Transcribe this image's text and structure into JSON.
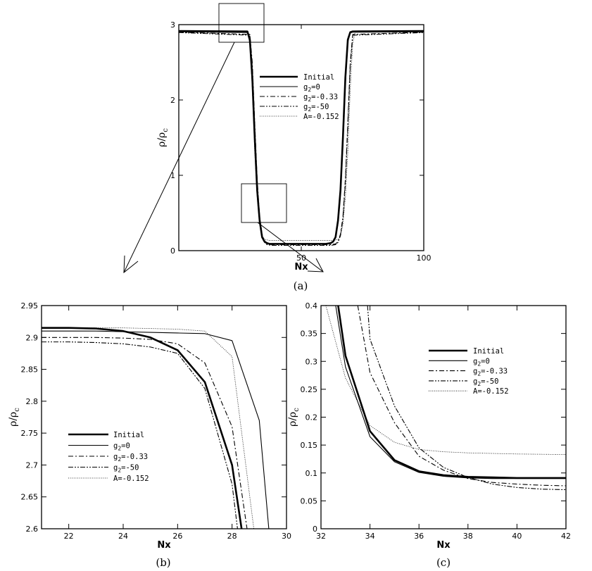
{
  "styles": {
    "Initial": {
      "width": 2.6,
      "dash": ""
    },
    "g2=0": {
      "width": 1.1,
      "dash": ""
    },
    "g2=-0.33": {
      "width": 1.1,
      "dash": "7,3,2,3"
    },
    "g2=-50": {
      "width": 1.1,
      "dash": "7,2,2,2,2,2"
    },
    "A=-0.152": {
      "width": 0.8,
      "dash": "1,1.6"
    }
  },
  "chart_data": [
    {
      "id": "a",
      "type": "line",
      "caption": "(a)",
      "xlabel": "Nx",
      "ylabel": "ρ/ρc",
      "ylabel_main": "ρ/ρ",
      "ylabel_sub": "c",
      "xlim": [
        0,
        100
      ],
      "ylim": [
        0,
        3
      ],
      "xticks": [
        {
          "v": 50,
          "label": "50"
        },
        {
          "v": 100,
          "label": "100"
        }
      ],
      "yticks": [
        {
          "v": 0,
          "label": "0"
        },
        {
          "v": 1,
          "label": "1"
        },
        {
          "v": 2,
          "label": "2"
        },
        {
          "v": 3,
          "label": "3"
        }
      ],
      "legend": [
        {
          "key": "Initial",
          "pre": "Initial",
          "sub": "",
          "post": ""
        },
        {
          "key": "g2=0",
          "pre": "g",
          "sub": "2",
          "post": "=0"
        },
        {
          "key": "g2=-0.33",
          "pre": "g",
          "sub": "2",
          "post": "=-0.33"
        },
        {
          "key": "g2=-50",
          "pre": "g",
          "sub": "2",
          "post": "=-50"
        },
        {
          "key": "A=-0.152",
          "pre": "A=-0.152",
          "sub": "",
          "post": ""
        }
      ],
      "series": [
        {
          "key": "Initial",
          "x": [
            0,
            28,
            29,
            30,
            31,
            32,
            33,
            34,
            35,
            36,
            37,
            60,
            62,
            63,
            64,
            65,
            66,
            67,
            68,
            69,
            70,
            71,
            100
          ],
          "y": [
            2.915,
            2.91,
            2.8,
            2.3,
            1.5,
            0.8,
            0.4,
            0.18,
            0.12,
            0.1,
            0.09,
            0.09,
            0.1,
            0.12,
            0.18,
            0.4,
            0.8,
            1.5,
            2.3,
            2.8,
            2.9,
            2.91,
            2.915
          ]
        },
        {
          "key": "g2=0",
          "x": [
            0,
            28,
            29,
            30,
            31,
            32,
            33,
            34,
            35,
            36,
            37,
            61,
            62,
            63,
            64,
            65,
            66,
            67,
            68,
            69,
            70,
            71,
            100
          ],
          "y": [
            2.905,
            2.895,
            2.77,
            2.2,
            1.4,
            0.75,
            0.37,
            0.17,
            0.12,
            0.1,
            0.09,
            0.09,
            0.1,
            0.12,
            0.17,
            0.37,
            0.75,
            1.4,
            2.2,
            2.77,
            2.89,
            2.9,
            2.905
          ]
        },
        {
          "key": "g2=-0.33",
          "x": [
            0,
            29,
            30,
            31,
            32,
            33,
            34,
            35,
            36,
            38,
            62,
            64,
            65,
            66,
            67,
            68,
            69,
            70,
            71,
            100
          ],
          "y": [
            2.9,
            2.87,
            2.5,
            1.7,
            0.95,
            0.45,
            0.22,
            0.12,
            0.09,
            0.08,
            0.08,
            0.09,
            0.12,
            0.22,
            0.45,
            0.95,
            1.7,
            2.5,
            2.87,
            2.9
          ]
        },
        {
          "key": "g2=-50",
          "x": [
            0,
            29,
            30,
            31,
            32,
            33,
            34,
            35,
            36,
            38,
            62,
            64,
            65,
            66,
            67,
            68,
            69,
            70,
            71,
            100
          ],
          "y": [
            2.895,
            2.86,
            2.45,
            1.65,
            0.9,
            0.42,
            0.2,
            0.11,
            0.08,
            0.07,
            0.07,
            0.08,
            0.11,
            0.2,
            0.42,
            0.9,
            1.65,
            2.45,
            2.86,
            2.895
          ]
        },
        {
          "key": "A=-0.152",
          "x": [
            0,
            28,
            29,
            30,
            31,
            32,
            33,
            34,
            35,
            37,
            63,
            65,
            66,
            67,
            68,
            69,
            70,
            71,
            72,
            100
          ],
          "y": [
            2.91,
            2.9,
            2.75,
            2.15,
            1.3,
            0.7,
            0.35,
            0.19,
            0.15,
            0.135,
            0.135,
            0.15,
            0.19,
            0.35,
            0.7,
            1.3,
            2.15,
            2.75,
            2.9,
            2.91
          ]
        }
      ]
    },
    {
      "id": "b",
      "type": "line",
      "caption": "(b)",
      "xlabel": "Nx",
      "ylabel": "ρ/ρc",
      "ylabel_main": "ρ/ρ",
      "ylabel_sub": "c",
      "xlim": [
        21,
        30
      ],
      "ylim": [
        2.6,
        2.95
      ],
      "xticks": [
        {
          "v": 22,
          "label": "22"
        },
        {
          "v": 24,
          "label": "24"
        },
        {
          "v": 26,
          "label": "26"
        },
        {
          "v": 28,
          "label": "28"
        },
        {
          "v": 30,
          "label": "30"
        }
      ],
      "yticks": [
        {
          "v": 2.6,
          "label": "2.6"
        },
        {
          "v": 2.65,
          "label": "2.65"
        },
        {
          "v": 2.7,
          "label": "2.7"
        },
        {
          "v": 2.75,
          "label": "2.75"
        },
        {
          "v": 2.8,
          "label": "2.8"
        },
        {
          "v": 2.85,
          "label": "2.85"
        },
        {
          "v": 2.9,
          "label": "2.9"
        },
        {
          "v": 2.95,
          "label": "2.95"
        }
      ],
      "legend": [
        {
          "key": "Initial",
          "pre": "Initial",
          "sub": "",
          "post": ""
        },
        {
          "key": "g2=0",
          "pre": "g",
          "sub": "2",
          "post": "=0"
        },
        {
          "key": "g2=-0.33",
          "pre": "g",
          "sub": "2",
          "post": "=-0.33"
        },
        {
          "key": "g2=-50",
          "pre": "g",
          "sub": "2",
          "post": "=-50"
        },
        {
          "key": "A=-0.152",
          "pre": "A=-0.152",
          "sub": "",
          "post": ""
        }
      ],
      "series": [
        {
          "key": "Initial",
          "x": [
            21,
            22,
            23,
            24,
            25,
            26,
            27,
            28,
            28.35
          ],
          "y": [
            2.915,
            2.915,
            2.914,
            2.91,
            2.9,
            2.88,
            2.83,
            2.7,
            2.6
          ]
        },
        {
          "key": "g2=0",
          "x": [
            21,
            22,
            23,
            24,
            25,
            26,
            27,
            28,
            29,
            29.35
          ],
          "y": [
            2.91,
            2.91,
            2.91,
            2.909,
            2.908,
            2.907,
            2.906,
            2.895,
            2.77,
            2.6
          ]
        },
        {
          "key": "g2=-0.33",
          "x": [
            21,
            22,
            23,
            24,
            25,
            26,
            27,
            28,
            28.55
          ],
          "y": [
            2.9,
            2.9,
            2.9,
            2.899,
            2.897,
            2.89,
            2.86,
            2.76,
            2.6
          ]
        },
        {
          "key": "g2=-50",
          "x": [
            21,
            22,
            23,
            24,
            25,
            26,
            27,
            28,
            28.2
          ],
          "y": [
            2.893,
            2.893,
            2.892,
            2.89,
            2.885,
            2.875,
            2.82,
            2.67,
            2.6
          ]
        },
        {
          "key": "A=-0.152",
          "x": [
            21,
            22,
            23,
            24,
            25,
            26,
            27,
            28,
            28.8
          ],
          "y": [
            2.915,
            2.915,
            2.915,
            2.915,
            2.914,
            2.913,
            2.91,
            2.87,
            2.6
          ]
        }
      ]
    },
    {
      "id": "c",
      "type": "line",
      "caption": "(c)",
      "xlabel": "Nx",
      "ylabel": "ρ/ρc",
      "ylabel_main": "ρ/ρ",
      "ylabel_sub": "c",
      "xlim": [
        32,
        42
      ],
      "ylim": [
        0,
        0.4
      ],
      "xticks": [
        {
          "v": 32,
          "label": "32"
        },
        {
          "v": 34,
          "label": "34"
        },
        {
          "v": 36,
          "label": "36"
        },
        {
          "v": 38,
          "label": "38"
        },
        {
          "v": 40,
          "label": "40"
        },
        {
          "v": 42,
          "label": "42"
        }
      ],
      "yticks": [
        {
          "v": 0,
          "label": "0"
        },
        {
          "v": 0.05,
          "label": "0.05"
        },
        {
          "v": 0.1,
          "label": "0.1"
        },
        {
          "v": 0.15,
          "label": "0.15"
        },
        {
          "v": 0.2,
          "label": "0.2"
        },
        {
          "v": 0.25,
          "label": "0.25"
        },
        {
          "v": 0.3,
          "label": "0.3"
        },
        {
          "v": 0.35,
          "label": "0.35"
        },
        {
          "v": 0.4,
          "label": "0.4"
        }
      ],
      "legend": [
        {
          "key": "Initial",
          "pre": "Initial",
          "sub": "",
          "post": ""
        },
        {
          "key": "g2=0",
          "pre": "g",
          "sub": "2",
          "post": "=0"
        },
        {
          "key": "g2=-0.33",
          "pre": "g",
          "sub": "2",
          "post": "=-0.33"
        },
        {
          "key": "g2=-50",
          "pre": "g",
          "sub": "2",
          "post": "=-50"
        },
        {
          "key": "A=-0.152",
          "pre": "A=-0.152",
          "sub": "",
          "post": ""
        }
      ],
      "series": [
        {
          "key": "Initial",
          "x": [
            32.7,
            33,
            34,
            35,
            36,
            37,
            38,
            39,
            40,
            41,
            42
          ],
          "y": [
            0.4,
            0.31,
            0.175,
            0.123,
            0.103,
            0.096,
            0.093,
            0.092,
            0.091,
            0.091,
            0.091
          ]
        },
        {
          "key": "g2=0",
          "x": [
            32.6,
            33,
            34,
            35,
            36,
            37,
            38,
            39,
            40,
            41,
            42
          ],
          "y": [
            0.4,
            0.29,
            0.165,
            0.12,
            0.101,
            0.094,
            0.091,
            0.09,
            0.09,
            0.09,
            0.09
          ]
        },
        {
          "key": "g2=-0.33",
          "x": [
            33.5,
            34,
            35,
            36,
            37,
            38,
            39,
            40,
            41,
            42
          ],
          "y": [
            0.4,
            0.28,
            0.19,
            0.13,
            0.105,
            0.09,
            0.083,
            0.08,
            0.078,
            0.077
          ]
        },
        {
          "key": "g2=-50",
          "x": [
            33.9,
            34,
            35,
            36,
            37,
            38,
            39,
            40,
            41,
            42
          ],
          "y": [
            0.4,
            0.34,
            0.22,
            0.145,
            0.11,
            0.092,
            0.08,
            0.074,
            0.071,
            0.07
          ]
        },
        {
          "key": "A=-0.152",
          "x": [
            32.2,
            33,
            34,
            35,
            36,
            37,
            38,
            40,
            42
          ],
          "y": [
            0.4,
            0.27,
            0.185,
            0.155,
            0.142,
            0.138,
            0.136,
            0.134,
            0.133
          ]
        }
      ]
    }
  ]
}
